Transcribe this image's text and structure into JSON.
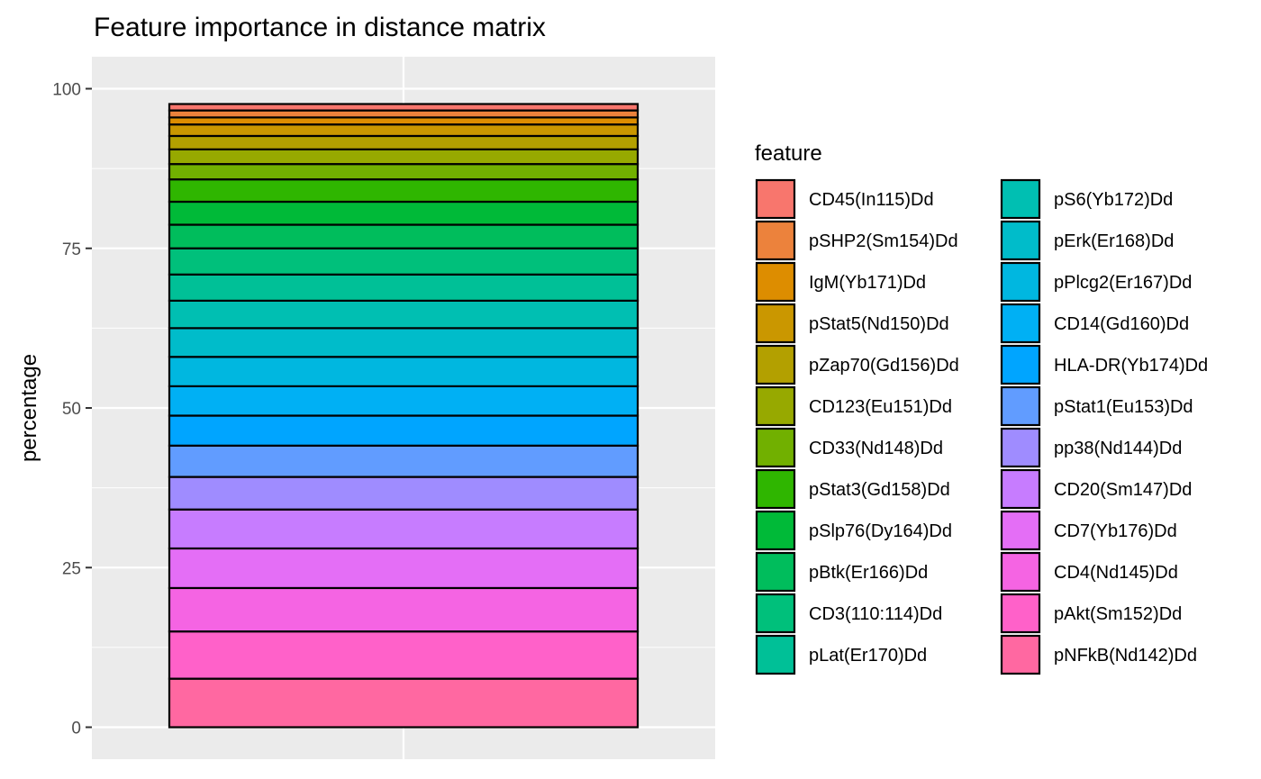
{
  "chart_data": {
    "type": "bar",
    "stacked": true,
    "title": "Feature importance in distance matrix",
    "xlabel": "",
    "ylabel": "percentage",
    "ylim": [
      -3,
      105
    ],
    "yticks": [
      0,
      25,
      50,
      75,
      100
    ],
    "grid": true,
    "legend": {
      "title": "feature",
      "position": "right",
      "columns": 2
    },
    "stack_order_top_to_bottom": [
      "CD45(In115)Dd",
      "pSHP2(Sm154)Dd",
      "IgM(Yb171)Dd",
      "pStat5(Nd150)Dd",
      "pZap70(Gd156)Dd",
      "CD123(Eu151)Dd",
      "CD33(Nd148)Dd",
      "pStat3(Gd158)Dd",
      "pSlp76(Dy164)Dd",
      "pBtk(Er166)Dd",
      "CD3(110:114)Dd",
      "pLat(Er170)Dd",
      "pS6(Yb172)Dd",
      "pErk(Er168)Dd",
      "pPlcg2(Er167)Dd",
      "CD14(Gd160)Dd",
      "HLA-DR(Yb174)Dd",
      "pStat1(Eu153)Dd",
      "pp38(Nd144)Dd",
      "CD20(Sm147)Dd",
      "CD7(Yb176)Dd",
      "CD4(Nd145)Dd",
      "pAkt(Sm152)Dd",
      "pNFkB(Nd142)Dd"
    ],
    "series": [
      {
        "name": "CD45(In115)Dd",
        "value": 1.0,
        "color": "#F8766D"
      },
      {
        "name": "pSHP2(Sm154)Dd",
        "value": 1.1,
        "color": "#EC823C"
      },
      {
        "name": "IgM(Yb171)Dd",
        "value": 1.1,
        "color": "#DD8D00"
      },
      {
        "name": "pStat5(Nd150)Dd",
        "value": 1.8,
        "color": "#CA9700"
      },
      {
        "name": "pZap70(Gd156)Dd",
        "value": 2.1,
        "color": "#B3A000"
      },
      {
        "name": "CD123(Eu151)Dd",
        "value": 2.3,
        "color": "#97A900"
      },
      {
        "name": "CD33(Nd148)Dd",
        "value": 2.4,
        "color": "#71B000"
      },
      {
        "name": "pStat3(Gd158)Dd",
        "value": 3.5,
        "color": "#2FB600"
      },
      {
        "name": "pSlp76(Dy164)Dd",
        "value": 3.6,
        "color": "#00BA38"
      },
      {
        "name": "pBtk(Er166)Dd",
        "value": 3.7,
        "color": "#00BD5C"
      },
      {
        "name": "CD3(110:114)Dd",
        "value": 4.1,
        "color": "#00C07B"
      },
      {
        "name": "pLat(Er170)Dd",
        "value": 4.1,
        "color": "#00C097"
      },
      {
        "name": "pS6(Yb172)Dd",
        "value": 4.3,
        "color": "#00BFB2"
      },
      {
        "name": "pErk(Er168)Dd",
        "value": 4.5,
        "color": "#00BCCA"
      },
      {
        "name": "pPlcg2(Er167)Dd",
        "value": 4.6,
        "color": "#00B7E0"
      },
      {
        "name": "CD14(Gd160)Dd",
        "value": 4.6,
        "color": "#00B0F4"
      },
      {
        "name": "HLA-DR(Yb174)Dd",
        "value": 4.7,
        "color": "#00A5FF"
      },
      {
        "name": "pStat1(Eu153)Dd",
        "value": 4.9,
        "color": "#619CFF"
      },
      {
        "name": "pp38(Nd144)Dd",
        "value": 5.1,
        "color": "#9F8CFF"
      },
      {
        "name": "CD20(Sm147)Dd",
        "value": 6.1,
        "color": "#C77CFF"
      },
      {
        "name": "CD7(Yb176)Dd",
        "value": 6.2,
        "color": "#E46EF6"
      },
      {
        "name": "CD4(Nd145)Dd",
        "value": 6.8,
        "color": "#F564E3"
      },
      {
        "name": "pAkt(Sm152)Dd",
        "value": 7.4,
        "color": "#FF61C9"
      },
      {
        "name": "pNFkB(Nd142)Dd",
        "value": 7.6,
        "color": "#FF68A1"
      }
    ]
  }
}
